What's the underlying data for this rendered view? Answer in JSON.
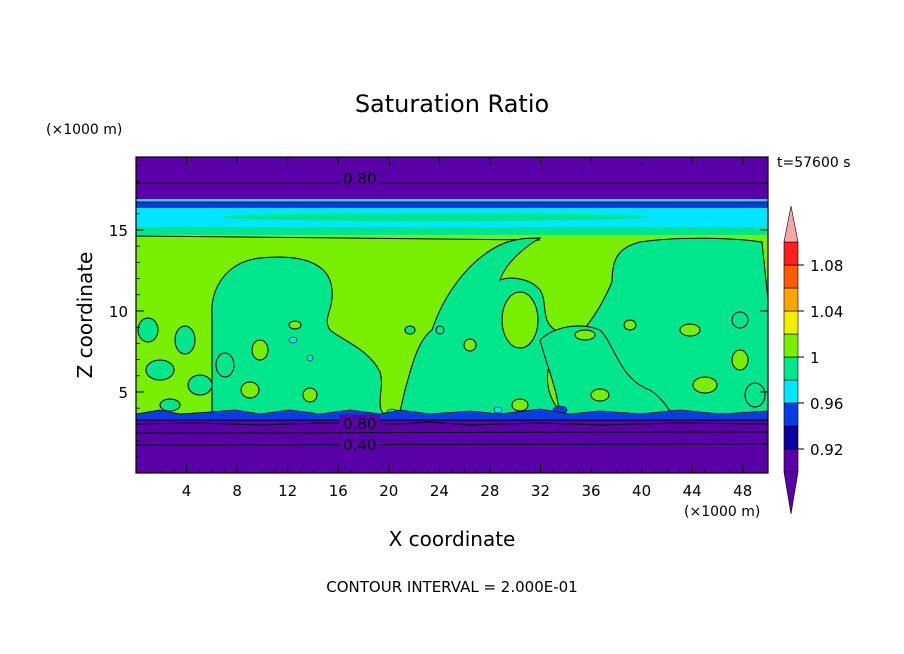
{
  "chart_data": {
    "type": "heatmap",
    "title": "Saturation Ratio",
    "xlabel": "X coordinate",
    "ylabel": "Z coordinate",
    "x_units": "(×1000 m)",
    "y_units": "(×1000 m)",
    "time_label": "t=57600 s",
    "footer": "CONTOUR INTERVAL = 2.000E-01",
    "xlim": [
      0,
      50
    ],
    "ylim": [
      0,
      19.5
    ],
    "x_ticks": [
      4,
      8,
      12,
      16,
      20,
      24,
      28,
      32,
      36,
      40,
      44,
      48
    ],
    "y_ticks": [
      5,
      10,
      15
    ],
    "contour_labels": [
      {
        "text": "0.80",
        "x": 17.7,
        "y": 18.2
      },
      {
        "text": "0.80",
        "x": 17.7,
        "y": 3.1
      },
      {
        "text": "0.40",
        "x": 17.7,
        "y": 1.8
      }
    ],
    "colorbar": {
      "levels": [
        0.9,
        0.92,
        0.94,
        0.96,
        0.98,
        1.0,
        1.02,
        1.04,
        1.06,
        1.08,
        1.1
      ],
      "colors": [
        "#5a00a8",
        "#0a00a0",
        "#0a3ce6",
        "#00e6ff",
        "#00e68c",
        "#78ee00",
        "#f0f000",
        "#ffa500",
        "#ff5a00",
        "#ff1e1e"
      ],
      "under_color": "#5a00a8",
      "over_color": "#f4a7a4",
      "tick_labels": [
        "0.92",
        "0.96",
        "1",
        "1.04",
        "1.08"
      ],
      "tick_values": [
        0.92,
        0.96,
        1.0,
        1.04,
        1.08
      ]
    },
    "bands": [
      {
        "z0": 0,
        "z1": 3.3,
        "color": "#5a00a8"
      },
      {
        "z0": 3.3,
        "z1": 15.0,
        "color": "#78ee00"
      },
      {
        "z0": 15.0,
        "z1": 16.9,
        "color": "#00e6ff"
      },
      {
        "z0": 16.9,
        "z1": 19.5,
        "color": "#5a00a8"
      }
    ],
    "color_names": {
      "violet": "#5a00a8",
      "navy": "#0a00a0",
      "blue": "#0a3ce6",
      "cyan": "#00e6ff",
      "teal": "#00e68c",
      "green": "#78ee00"
    }
  }
}
